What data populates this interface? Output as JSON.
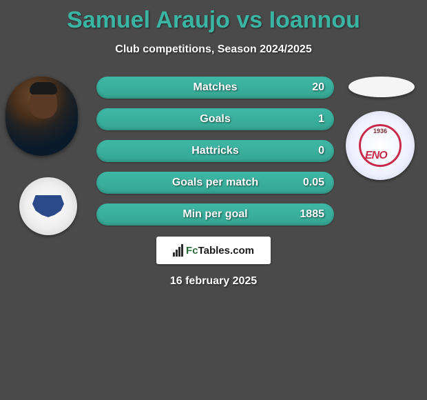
{
  "title": "Samuel Araujo vs Ioannou",
  "subtitle": "Club competitions, Season 2024/2025",
  "date": "16 february 2025",
  "bar_color": "#3fb8a6",
  "background_color": "#4a4a4a",
  "text_color": "#ffffff",
  "title_color": "#3bb5a3",
  "stats": [
    {
      "label": "Matches",
      "value": "20"
    },
    {
      "label": "Goals",
      "value": "1"
    },
    {
      "label": "Hattricks",
      "value": "0"
    },
    {
      "label": "Goals per match",
      "value": "0.05"
    },
    {
      "label": "Min per goal",
      "value": "1885"
    }
  ],
  "logo": {
    "text_a": "Fc",
    "text_b": "Tables.com"
  },
  "club_right": {
    "year": "1936",
    "abbrev": "ENO"
  }
}
